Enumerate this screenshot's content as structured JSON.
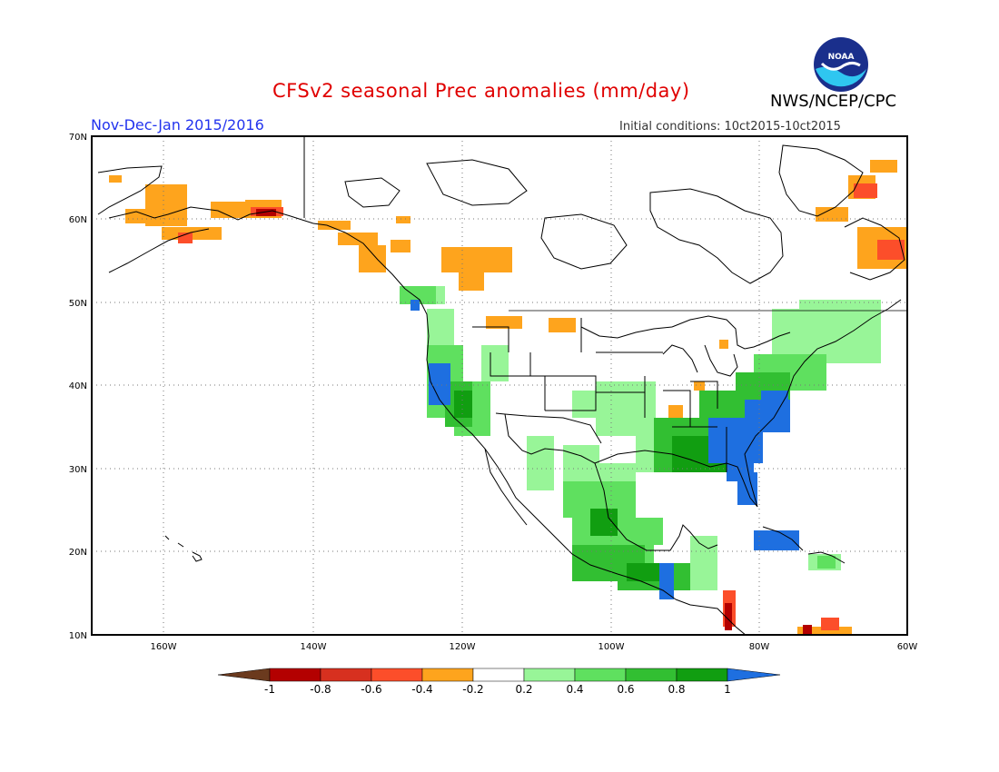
{
  "title": "CFSv2 seasonal Prec anomalies (mm/day)",
  "agency": "NWS/NCEP/CPC",
  "logo_text": "NOAA",
  "period": "Nov-Dec-Jan 2015/2016",
  "initial_conditions": "Initial conditions: 10ct2015-10ct2015",
  "lat_labels": [
    "70N",
    "60N",
    "50N",
    "40N",
    "30N",
    "20N",
    "10N"
  ],
  "lon_labels": [
    "160W",
    "140W",
    "120W",
    "100W",
    "80W",
    "60W"
  ],
  "colorbar": {
    "tick_labels": [
      "-1",
      "-0.8",
      "-0.6",
      "-0.4",
      "-0.2",
      "0.2",
      "0.4",
      "0.6",
      "0.8",
      "1"
    ],
    "colors": [
      "#6b3a1e",
      "#b30000",
      "#d7301f",
      "#fc4e2a",
      "#fea41d",
      "#ffffff",
      "#98f598",
      "#5fe05f",
      "#32bf32",
      "#119e11",
      "#1e6fe0"
    ]
  },
  "anomaly_regions": [
    {
      "name": "california-coast",
      "level": 1.0
    },
    {
      "name": "southeast-us",
      "level": 1.0
    },
    {
      "name": "florida",
      "level": 1.0
    },
    {
      "name": "cuba",
      "level": 1.0
    },
    {
      "name": "gulf-coast",
      "level": 0.8
    },
    {
      "name": "mexico",
      "level": 0.6
    },
    {
      "name": "central-plains",
      "level": 0.2
    },
    {
      "name": "alaska",
      "level": -0.4
    },
    {
      "name": "western-canada",
      "level": -0.4
    },
    {
      "name": "eastern-canada",
      "level": -0.6
    }
  ]
}
